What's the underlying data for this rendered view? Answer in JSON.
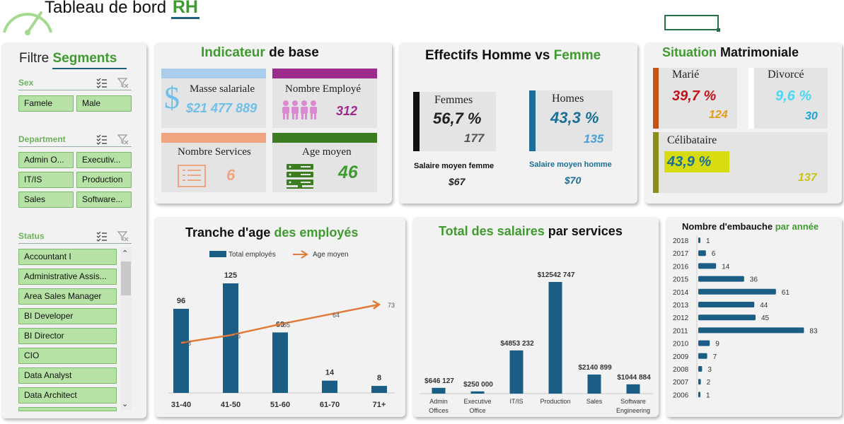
{
  "header": {
    "title_main": "Tableau de bord ",
    "title_hl": "RH"
  },
  "slicers": {
    "title_main": "Filtre ",
    "title_hl": "Segments",
    "sex": {
      "label": "Sex",
      "items": [
        "Famele",
        "Male"
      ]
    },
    "department": {
      "label": "Department",
      "items": [
        "Admin O...",
        "Executiv...",
        "IT/IS",
        "Production",
        "Sales",
        "Software..."
      ]
    },
    "status": {
      "label": "Status",
      "items": [
        "Accountant I",
        "Administrative Assis...",
        "Area Sales Manager",
        "BI Developer",
        "BI Director",
        "CIO",
        "Data Analyst",
        "Data Architect"
      ]
    }
  },
  "indicateur": {
    "title_hl": "Indicateur",
    "title_main": " de base",
    "masse": {
      "label": "Masse salariale",
      "value": "$21 477 889"
    },
    "employes": {
      "label": "Nombre Employé",
      "value": "312"
    },
    "services": {
      "label": "Nombre Services",
      "value": "6"
    },
    "age": {
      "label": "Age moyen",
      "value": "46"
    }
  },
  "effectifs": {
    "title_main": "Effectifs Homme vs ",
    "title_hl": "Femme",
    "femmes": {
      "label": "Femmes",
      "pct": "56,7 %",
      "count": "177",
      "sal_label": "Salaire moyen femme",
      "sal_value": "$67"
    },
    "homes": {
      "label": "Homes",
      "pct": "43,3 %",
      "count": "135",
      "sal_label": "Salaire moyen homme",
      "sal_value": "$70"
    }
  },
  "matrimoniale": {
    "title_hl": "Situation",
    "title_main": " Matrimoniale",
    "marie": {
      "label": "Marié",
      "pct": "39,7 %",
      "count": "124"
    },
    "divorce": {
      "label": "Divorcé",
      "pct": "9,6 %",
      "count": "30"
    },
    "celibataire": {
      "label": "Célibataire",
      "pct": "43,9 %",
      "count": "137"
    }
  },
  "chart_age": {
    "title_main": "Tranche d'age ",
    "title_hl": "des employés",
    "legend": [
      "Total employés",
      "Age moyen"
    ]
  },
  "chart_sal": {
    "title_hl": "Total des salaires",
    "title_main": " par services"
  },
  "chart_hire": {
    "title_main": "Nombre d'embauche ",
    "title_hl": "par année"
  },
  "chart_data": [
    {
      "type": "bar",
      "title": "Tranche d'age des employés",
      "categories": [
        "31-40",
        "41-50",
        "51-60",
        "61-70",
        "71+"
      ],
      "series": [
        {
          "name": "Total employés",
          "type": "bar",
          "values": [
            96,
            125,
            69,
            14,
            8
          ]
        },
        {
          "name": "Age moyen",
          "type": "line",
          "values": [
            38,
            45,
            55,
            64,
            73
          ]
        }
      ],
      "legend": "top"
    },
    {
      "type": "bar",
      "title": "Total des salaires par services",
      "categories": [
        "Admin Offices",
        "Executive Office",
        "IT/IS",
        "Production",
        "Sales",
        "Software Engineering"
      ],
      "values": [
        646127,
        250000,
        4853232,
        12542747,
        2140899,
        1044884
      ],
      "labels": [
        "$646 127",
        "$250 000",
        "$4853 232",
        "$12542 747",
        "$2140 899",
        "$1044 884"
      ]
    },
    {
      "type": "bar",
      "orientation": "horizontal",
      "title": "Nombre d'embauche par année",
      "categories": [
        "2018",
        "2017",
        "2016",
        "2015",
        "2014",
        "2013",
        "2012",
        "2011",
        "2010",
        "2009",
        "2008",
        "2007",
        "2006"
      ],
      "values": [
        1,
        6,
        14,
        36,
        61,
        44,
        45,
        83,
        9,
        7,
        3,
        2,
        1
      ]
    }
  ],
  "colors": {
    "green": "#3f9b2f",
    "bar_blue": "#1b5e85",
    "line_orange": "#e07b39",
    "blue_light": "#6fbfe8",
    "purple": "#9d2b8e",
    "salmon": "#f0a47f",
    "dark_green": "#3c7d22"
  }
}
